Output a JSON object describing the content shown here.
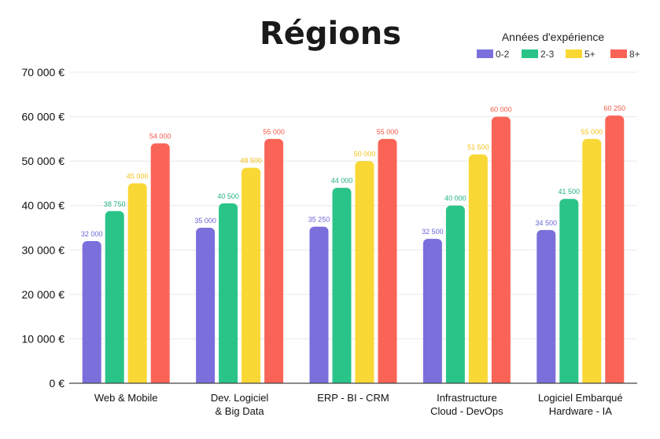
{
  "chart_data": {
    "type": "bar",
    "title": "Régions",
    "legend_title": "Années d'expérience",
    "legend_position": "top-right",
    "categories": [
      [
        "Web & Mobile"
      ],
      [
        "Dev. Logiciel",
        "& Big Data"
      ],
      [
        "ERP - BI - CRM"
      ],
      [
        "Infrastructure",
        "Cloud - DevOps"
      ],
      [
        "Logiciel Embarqué",
        "Hardware - IA"
      ]
    ],
    "series": [
      {
        "name": "0-2",
        "color": "#7b6fdc",
        "values": [
          32000,
          35000,
          35250,
          32500,
          34500
        ],
        "labels": [
          "32 000",
          "35 000",
          "35 250",
          "32 500",
          "34 500"
        ]
      },
      {
        "name": "2-3",
        "color": "#2ac488",
        "values": [
          38750,
          40500,
          44000,
          40000,
          41500
        ],
        "labels": [
          "38 750",
          "40 500",
          "44 000",
          "40 000",
          "41 500"
        ]
      },
      {
        "name": "5+",
        "color": "#f9d835",
        "values": [
          45000,
          48500,
          50000,
          51500,
          55000
        ],
        "labels": [
          "45 000",
          "48 500",
          "50 000",
          "51 500",
          "55 000"
        ]
      },
      {
        "name": "8+",
        "color": "#fa6457",
        "values": [
          54000,
          55000,
          55000,
          60000,
          60250
        ],
        "labels": [
          "54 000",
          "55 000",
          "55 000",
          "60 000",
          "60 250"
        ]
      }
    ],
    "ylim": [
      0,
      70000
    ],
    "yticks": [
      0,
      10000,
      20000,
      30000,
      40000,
      50000,
      60000,
      70000
    ],
    "ytick_labels": [
      "0 €",
      "10 000 €",
      "20 000 €",
      "30 000 €",
      "40 000 €",
      "50 000 €",
      "60 000 €",
      "70 000 €"
    ],
    "grid": true,
    "data_label_colors": [
      "#6a64d8",
      "#22b37c",
      "#f2c21b",
      "#f25a4a"
    ]
  }
}
